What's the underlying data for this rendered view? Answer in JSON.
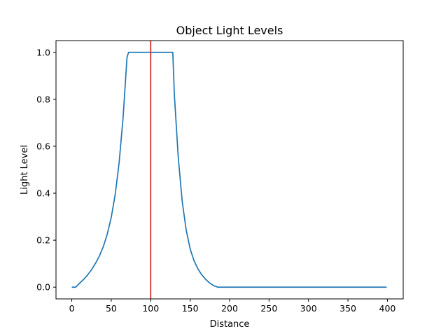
{
  "chart_data": {
    "type": "line",
    "title": "Object Light Levels",
    "xlabel": "Distance",
    "ylabel": "Light Level",
    "xlim": [
      -20,
      420
    ],
    "ylim": [
      -0.05,
      1.05
    ],
    "xticks": [
      0,
      50,
      100,
      150,
      200,
      250,
      300,
      350,
      400
    ],
    "yticks": [
      0.0,
      0.2,
      0.4,
      0.6,
      0.8,
      1.0
    ],
    "ytick_labels": [
      "0.0",
      "0.2",
      "0.4",
      "0.6",
      "0.8",
      "1.0"
    ],
    "grid": false,
    "series": [
      {
        "color": "#1f77b4",
        "x": [
          0,
          5,
          10,
          15,
          20,
          25,
          30,
          35,
          40,
          45,
          50,
          55,
          60,
          65,
          70,
          72,
          128,
          130,
          135,
          140,
          145,
          150,
          155,
          160,
          165,
          170,
          175,
          180,
          185,
          190,
          195,
          200,
          250,
          300,
          350,
          399
        ],
        "y": [
          0.0,
          0.0,
          0.017,
          0.033,
          0.052,
          0.074,
          0.101,
          0.133,
          0.173,
          0.226,
          0.297,
          0.394,
          0.53,
          0.721,
          0.979,
          1.0,
          1.0,
          0.82,
          0.549,
          0.364,
          0.243,
          0.163,
          0.112,
          0.077,
          0.051,
          0.032,
          0.017,
          0.006,
          0.0,
          0.0,
          0.0,
          0.0,
          0.0,
          0.0,
          0.0,
          0.0
        ]
      }
    ],
    "vline": {
      "x": 100,
      "color": "#d62728"
    }
  }
}
